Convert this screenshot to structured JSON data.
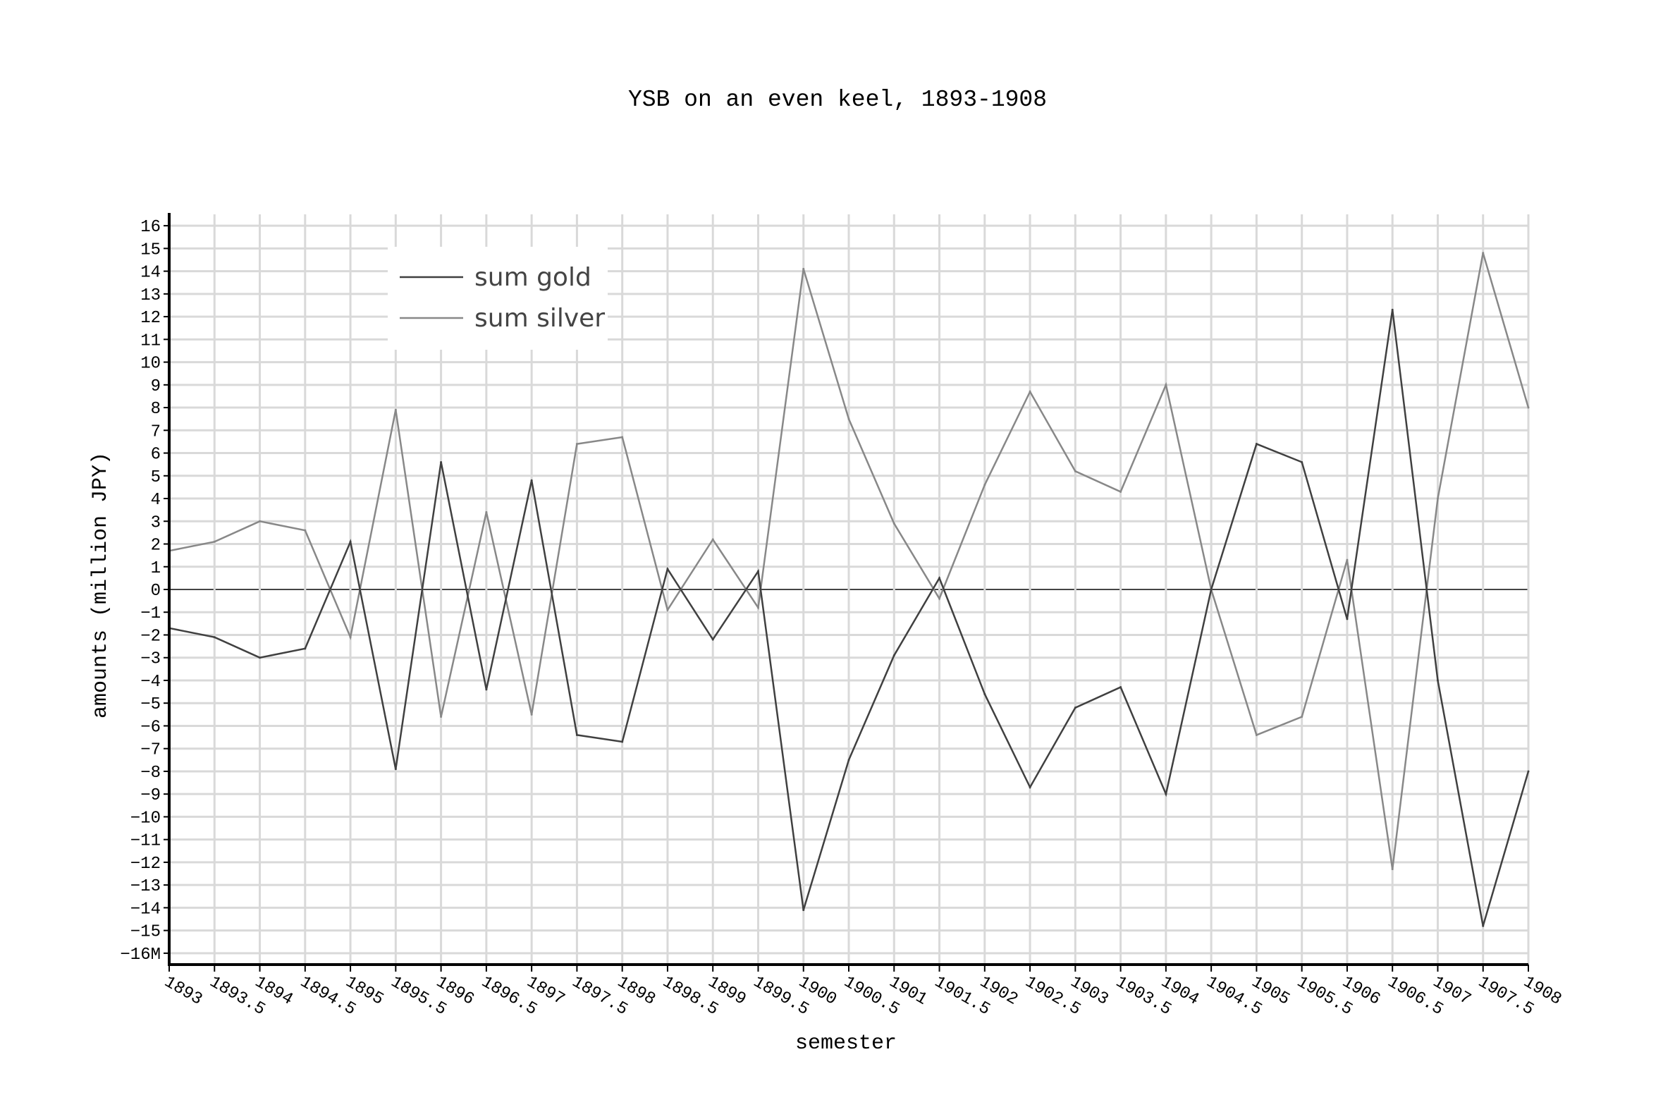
{
  "chart_data": {
    "type": "line",
    "title": "YSB on an even keel, 1893-1908",
    "xlabel": "semester",
    "ylabel": "amounts (million JPY)",
    "x": [
      1893,
      1893.5,
      1894,
      1894.5,
      1895,
      1895.5,
      1896,
      1896.5,
      1897,
      1897.5,
      1898,
      1898.5,
      1899,
      1899.5,
      1900,
      1900.5,
      1901,
      1901.5,
      1902,
      1902.5,
      1903,
      1903.5,
      1904,
      1904.5,
      1905,
      1905.5,
      1906,
      1906.5,
      1907,
      1907.5,
      1908
    ],
    "x_tick_labels": [
      "1893",
      "1893.5",
      "1894",
      "1894.5",
      "1895",
      "1895.5",
      "1896",
      "1896.5",
      "1897",
      "1897.5",
      "1898",
      "1898.5",
      "1899",
      "1899.5",
      "1900",
      "1900.5",
      "1901",
      "1901.5",
      "1902",
      "1902.5",
      "1903",
      "1903.5",
      "1904",
      "1904.5",
      "1905",
      "1905.5",
      "1906",
      "1906.5",
      "1907",
      "1907.5",
      "1908"
    ],
    "y_ticks": [
      16,
      15,
      14,
      13,
      12,
      11,
      10,
      9,
      8,
      7,
      6,
      5,
      4,
      3,
      2,
      1,
      0,
      -1,
      -2,
      -3,
      -4,
      -5,
      -6,
      -7,
      -8,
      -9,
      -10,
      -11,
      -12,
      -13,
      -14,
      -15,
      -16
    ],
    "y_tick_labels": [
      "16",
      "15",
      "14",
      "13",
      "12",
      "11",
      "10",
      "9",
      "8",
      "7",
      "6",
      "5",
      "4",
      "3",
      "2",
      "1",
      "0",
      "−1",
      "−2",
      "−3",
      "−4",
      "−5",
      "−6",
      "−7",
      "−8",
      "−9",
      "−10",
      "−11",
      "−12",
      "−13",
      "−14",
      "−15",
      "−16M"
    ],
    "xlim": [
      1893,
      1908
    ],
    "ylim": [
      -16.5,
      16.5
    ],
    "grid": true,
    "legend_position": "top-left",
    "series": [
      {
        "name": "sum gold",
        "color": "#404040",
        "values": [
          -1.7,
          -2.1,
          -3.0,
          -2.6,
          2.1,
          -7.9,
          5.6,
          -4.4,
          4.8,
          -6.4,
          -6.7,
          0.9,
          -2.2,
          0.8,
          -14.1,
          -7.5,
          -2.9,
          0.5,
          -4.6,
          -8.7,
          -5.2,
          -4.3,
          -9.0,
          0.0,
          6.4,
          5.6,
          -1.3,
          12.3,
          -4.0,
          -14.8,
          -8.0
        ]
      },
      {
        "name": "sum silver",
        "color": "#888888",
        "values": [
          1.7,
          2.1,
          3.0,
          2.6,
          -2.1,
          7.9,
          -5.6,
          3.4,
          -5.5,
          6.4,
          6.7,
          -0.9,
          2.2,
          -0.8,
          14.1,
          7.5,
          2.9,
          -0.4,
          4.6,
          8.7,
          5.2,
          4.3,
          9.0,
          0.0,
          -6.4,
          -5.6,
          1.3,
          -12.3,
          4.0,
          14.8,
          8.0
        ]
      }
    ]
  }
}
